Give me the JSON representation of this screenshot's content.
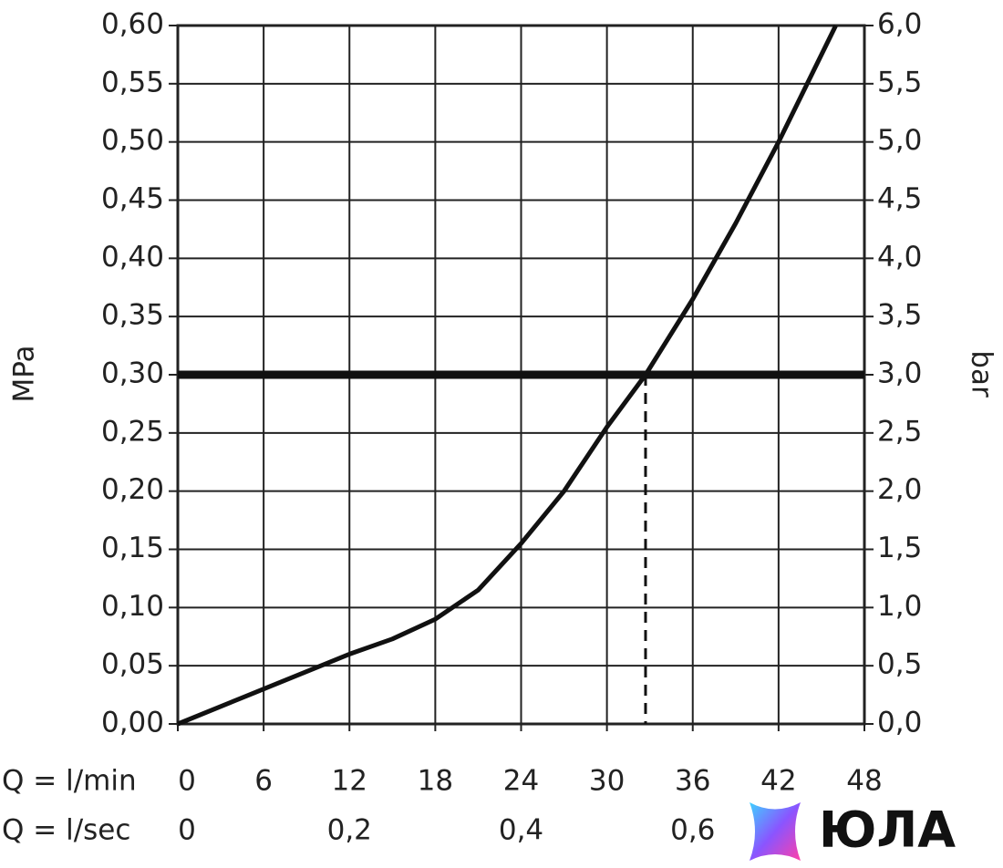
{
  "chart_data": {
    "type": "line",
    "y_label": "MPa",
    "y2_label": "bar",
    "x_label": "Q = l/min",
    "x2_label": "Q = l/sec",
    "x": [
      0,
      6,
      10,
      12,
      15,
      18,
      21,
      24,
      27,
      30,
      32.7,
      36,
      39,
      42,
      46
    ],
    "values": [
      0,
      0.03,
      0.05,
      0.06,
      0.073,
      0.09,
      0.115,
      0.155,
      0.2,
      0.255,
      0.3,
      0.365,
      0.43,
      0.5,
      0.6
    ],
    "color": "#111111",
    "xlim": [
      0,
      48
    ],
    "xticks": [
      0,
      6,
      12,
      18,
      24,
      30,
      36,
      42,
      48
    ],
    "x2lim": [
      0,
      0.8
    ],
    "x2ticks": [
      0,
      {
        "value": 0.2,
        "label": "0,2"
      },
      {
        "value": 0.4,
        "label": "0,4"
      },
      {
        "value": 0.6,
        "label": "0,6"
      }
    ],
    "ylim": [
      0,
      0.6
    ],
    "yticks": [
      {
        "value": 0,
        "label": "0,00"
      },
      {
        "value": 0.05,
        "label": "0,05"
      },
      {
        "value": 0.1,
        "label": "0,10"
      },
      {
        "value": 0.15,
        "label": "0,15"
      },
      {
        "value": 0.2,
        "label": "0,20"
      },
      {
        "value": 0.25,
        "label": "0,25"
      },
      {
        "value": 0.3,
        "label": "0,30"
      },
      {
        "value": 0.35,
        "label": "0,35"
      },
      {
        "value": 0.4,
        "label": "0,40"
      },
      {
        "value": 0.45,
        "label": "0,45"
      },
      {
        "value": 0.5,
        "label": "0,50"
      },
      {
        "value": 0.55,
        "label": "0,55"
      },
      {
        "value": 0.6,
        "label": "0,60"
      }
    ],
    "y2lim": [
      0,
      6
    ],
    "y2ticks": [
      {
        "value": 0,
        "label": "0,0"
      },
      {
        "value": 0.5,
        "label": "0,5"
      },
      {
        "value": 1,
        "label": "1,0"
      },
      {
        "value": 1.5,
        "label": "1,5"
      },
      {
        "value": 2,
        "label": "2,0"
      },
      {
        "value": 2.5,
        "label": "2,5"
      },
      {
        "value": 3,
        "label": "3,0"
      },
      {
        "value": 3.5,
        "label": "3,5"
      },
      {
        "value": 4,
        "label": "4,0"
      },
      {
        "value": 4.5,
        "label": "4,5"
      },
      {
        "value": 5,
        "label": "5,0"
      },
      {
        "value": 5.5,
        "label": "5,5"
      },
      {
        "value": 6,
        "label": "6,0"
      }
    ],
    "reference_y": 0.3,
    "reference_x": 32.7,
    "grid": true
  },
  "logo": "ЮЛА"
}
